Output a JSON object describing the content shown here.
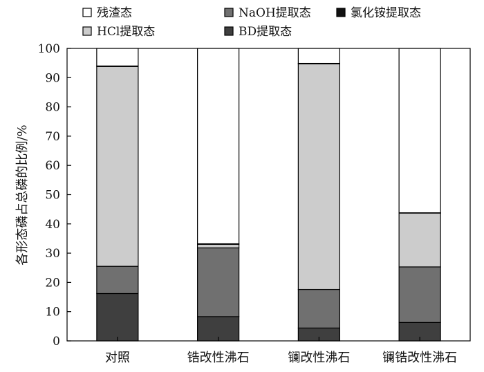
{
  "chart_data": {
    "type": "bar",
    "stacked": true,
    "categories": [
      "对照",
      "锆改性沸石",
      "镧改性沸石",
      "镧锆改性沸石"
    ],
    "series": [
      {
        "name": "BD提取态",
        "color": "#3f3f3f",
        "values": [
          16.2,
          8.3,
          4.4,
          6.3
        ]
      },
      {
        "name": "NaOH提取态",
        "color": "#707070",
        "values": [
          9.3,
          23.5,
          13.2,
          19.0
        ]
      },
      {
        "name": "HCl提取态",
        "color": "#cccccc",
        "values": [
          68.3,
          1.2,
          77.1,
          18.4
        ]
      },
      {
        "name": "氯化铵提取态",
        "color": "#111111",
        "values": [
          0.2,
          0.2,
          0.2,
          0.1
        ]
      },
      {
        "name": "残渣态",
        "color": "#ffffff",
        "values": [
          6.0,
          66.8,
          5.1,
          56.2
        ]
      }
    ],
    "ylabel": "各形态磷占总磷的比例/%",
    "xlabel": "",
    "ylim": [
      0,
      100
    ],
    "yticks": [
      0,
      10,
      20,
      30,
      40,
      50,
      60,
      70,
      80,
      90,
      100
    ],
    "legend_order": [
      "残渣态",
      "NaOH提取态",
      "氯化铵提取态",
      "HCl提取态",
      "BD提取态"
    ],
    "legend_position": "top",
    "grid": false
  }
}
